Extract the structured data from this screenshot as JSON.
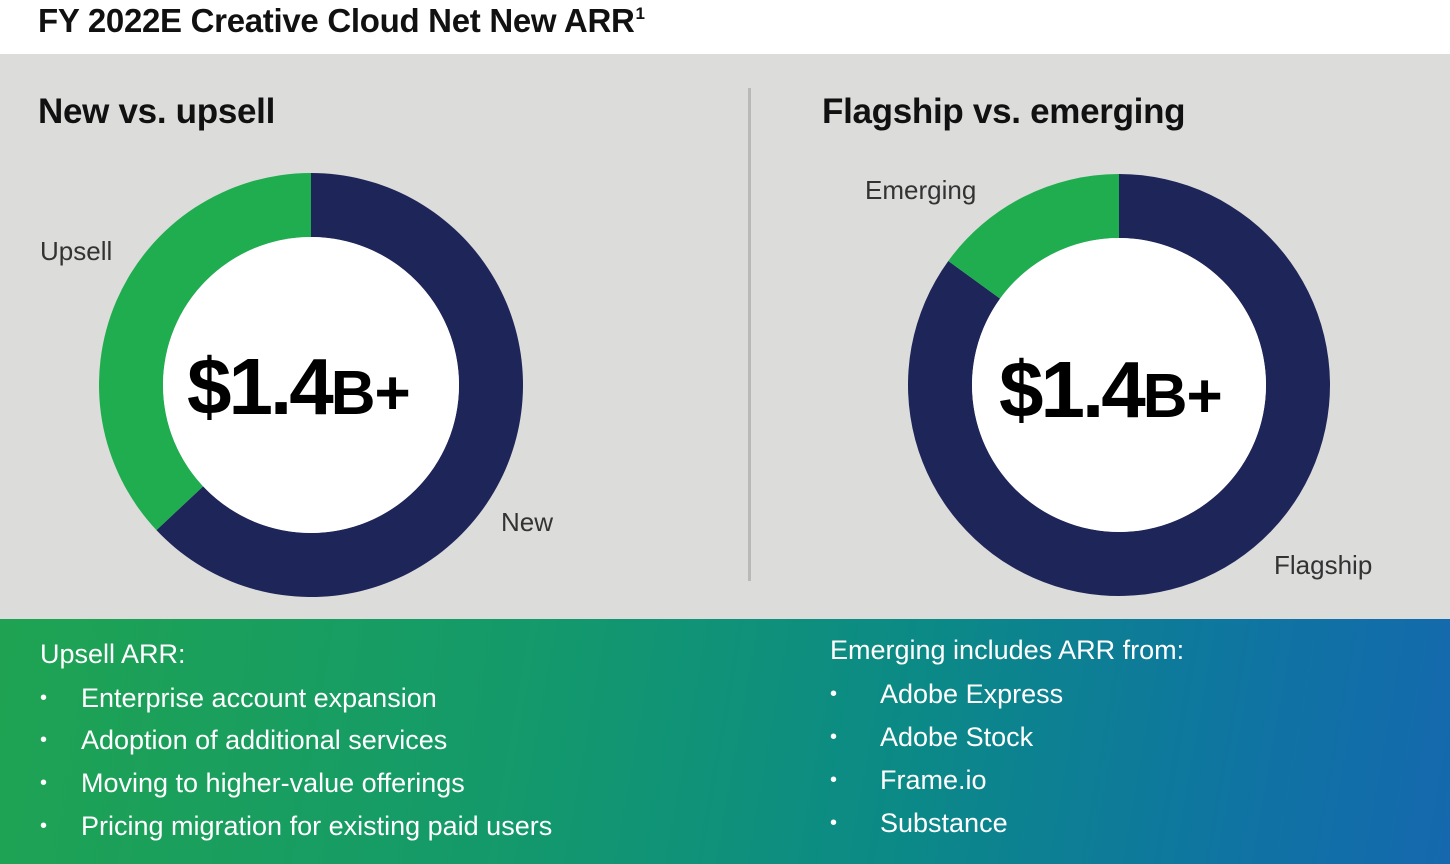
{
  "page": {
    "title": "FY 2022E Creative Cloud Net New ARR",
    "title_superscript": "1"
  },
  "chart_data": [
    {
      "type": "pie",
      "title": "New vs. upsell",
      "center_value": "$1.4",
      "center_suffix": "B+",
      "slices": [
        {
          "label": "New",
          "value": 63,
          "color": "#1e2559"
        },
        {
          "label": "Upsell",
          "value": 37,
          "color": "#20ad4f"
        }
      ]
    },
    {
      "type": "pie",
      "title": "Flagship vs. emerging",
      "center_value": "$1.4",
      "center_suffix": "B+",
      "slices": [
        {
          "label": "Flagship",
          "value": 85,
          "color": "#1e2559"
        },
        {
          "label": "Emerging",
          "value": 15,
          "color": "#20ad4f"
        }
      ]
    }
  ],
  "notes": {
    "left": {
      "heading": "Upsell ARR:",
      "bullet_glyph": "•",
      "items": [
        "Enterprise account expansion",
        "Adoption of additional services",
        "Moving to higher-value offerings",
        "Pricing migration for existing paid users"
      ]
    },
    "right": {
      "heading": "Emerging includes ARR from:",
      "bullet_glyph": "•",
      "items": [
        "Adobe Express",
        "Adobe Stock",
        "Frame.io",
        "Substance"
      ]
    }
  }
}
